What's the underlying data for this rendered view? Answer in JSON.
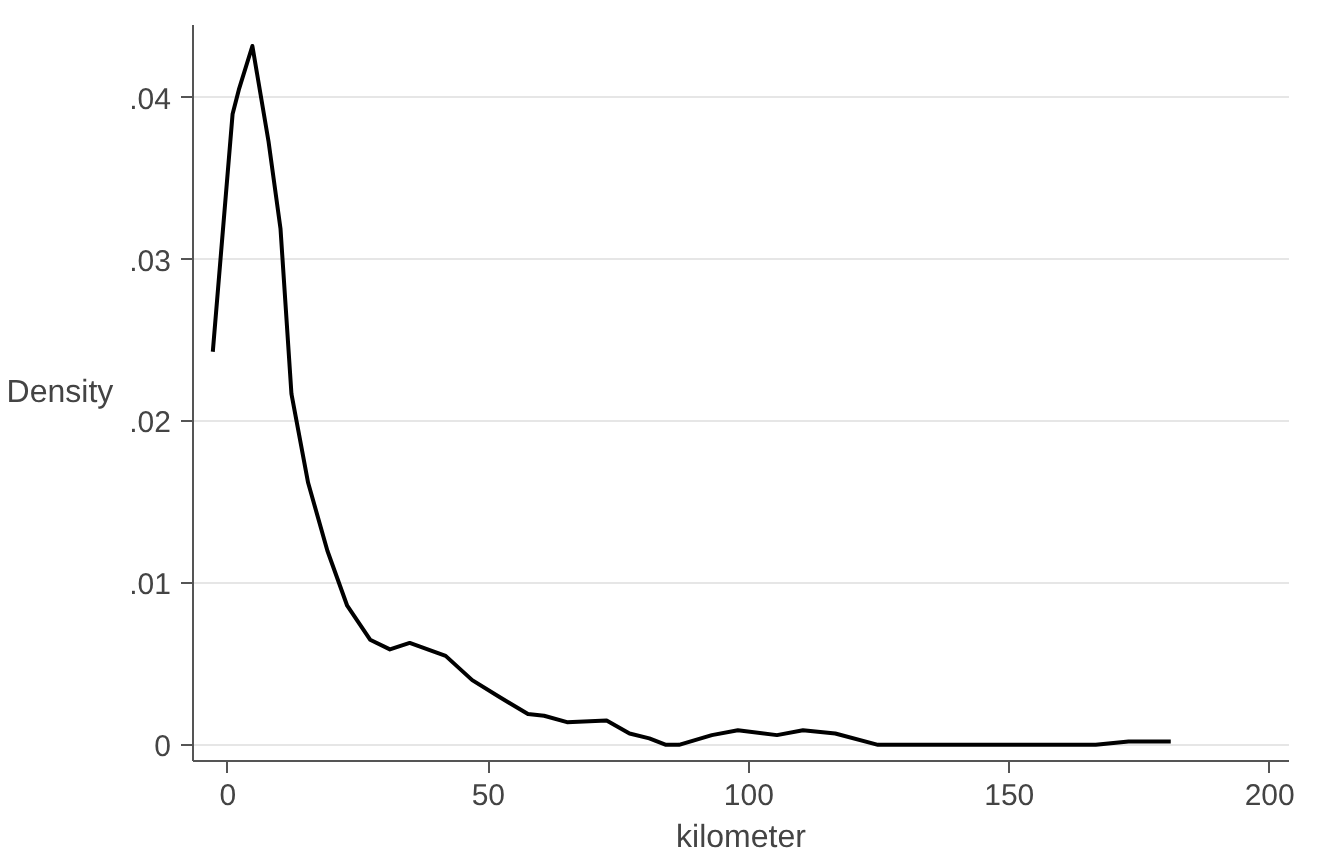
{
  "chart_data": {
    "type": "line",
    "xlabel": "kilometer",
    "ylabel": "Density",
    "grid": "y",
    "line_style": "solid",
    "xlim": [
      -6.7,
      203.7
    ],
    "ylim": [
      -0.001,
      0.0445
    ],
    "xticks": [
      0,
      50,
      100,
      150,
      200
    ],
    "yticks": [
      {
        "value": 0,
        "label": "0"
      },
      {
        "value": 0.01,
        "label": ".01"
      },
      {
        "value": 0.02,
        "label": ".02"
      },
      {
        "value": 0.03,
        "label": ".03"
      },
      {
        "value": 0.04,
        "label": ".04"
      }
    ],
    "series": [
      {
        "color": "#000000",
        "x": [
          -2.9,
          0.9,
          2.1,
          4.7,
          7.8,
          10.1,
          12.2,
          15.4,
          19.1,
          22.9,
          27.3,
          31.1,
          34.9,
          41.8,
          46.9,
          51.9,
          57.6,
          60.7,
          65.1,
          72.7,
          77.1,
          80.9,
          84.1,
          86.6,
          92.9,
          97.9,
          105.4,
          110.4,
          116.6,
          124.8,
          166.6,
          172.9,
          181
        ],
        "values": [
          0.0243,
          0.039,
          0.0405,
          0.0432,
          0.0373,
          0.0319,
          0.0217,
          0.0162,
          0.012,
          0.0086,
          0.0065,
          0.0059,
          0.0063,
          0.0055,
          0.004,
          0.003,
          0.0019,
          0.0018,
          0.0014,
          0.0015,
          0.0007,
          0.0004,
          0,
          0,
          0.0006,
          0.0009,
          0.0006,
          0.0009,
          0.0007,
          0,
          0,
          0.0002,
          0.0002
        ]
      }
    ]
  }
}
